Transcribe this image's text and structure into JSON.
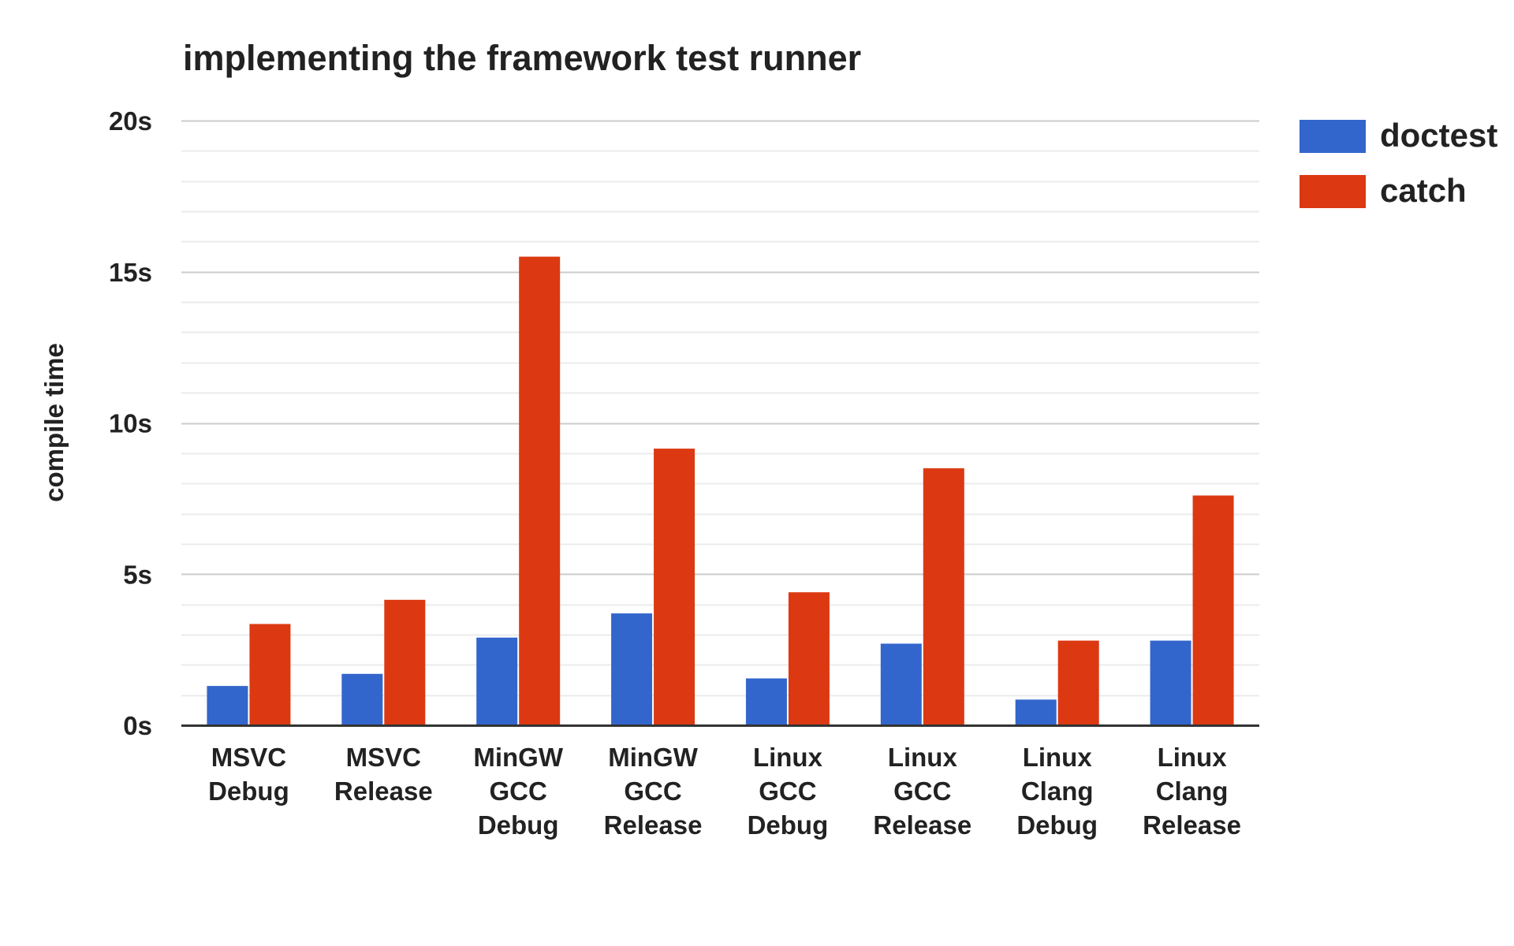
{
  "chart_data": {
    "type": "bar",
    "title": "implementing the framework test runner",
    "xlabel": "",
    "ylabel": "compile time",
    "ylim": [
      0,
      20
    ],
    "y_ticks": [
      0,
      5,
      10,
      15,
      20
    ],
    "y_tick_labels": [
      "0s",
      "5s",
      "10s",
      "15s",
      "20s"
    ],
    "minor_grid_step": 1,
    "grid": true,
    "legend_position": "top-right",
    "categories": [
      [
        "MSVC",
        "Debug"
      ],
      [
        "MSVC",
        "Release"
      ],
      [
        "MinGW",
        "GCC",
        "Debug"
      ],
      [
        "MinGW",
        "GCC",
        "Release"
      ],
      [
        "Linux",
        "GCC",
        "Debug"
      ],
      [
        "Linux",
        "GCC",
        "Release"
      ],
      [
        "Linux",
        "Clang",
        "Debug"
      ],
      [
        "Linux",
        "Clang",
        "Release"
      ]
    ],
    "series": [
      {
        "name": "doctest",
        "color": "#3366cc",
        "values": [
          1.3,
          1.7,
          2.9,
          3.7,
          1.55,
          2.7,
          0.85,
          2.8
        ]
      },
      {
        "name": "catch",
        "color": "#dc3912",
        "values": [
          3.35,
          4.15,
          15.5,
          9.15,
          4.4,
          8.5,
          2.8,
          7.6
        ]
      }
    ]
  }
}
